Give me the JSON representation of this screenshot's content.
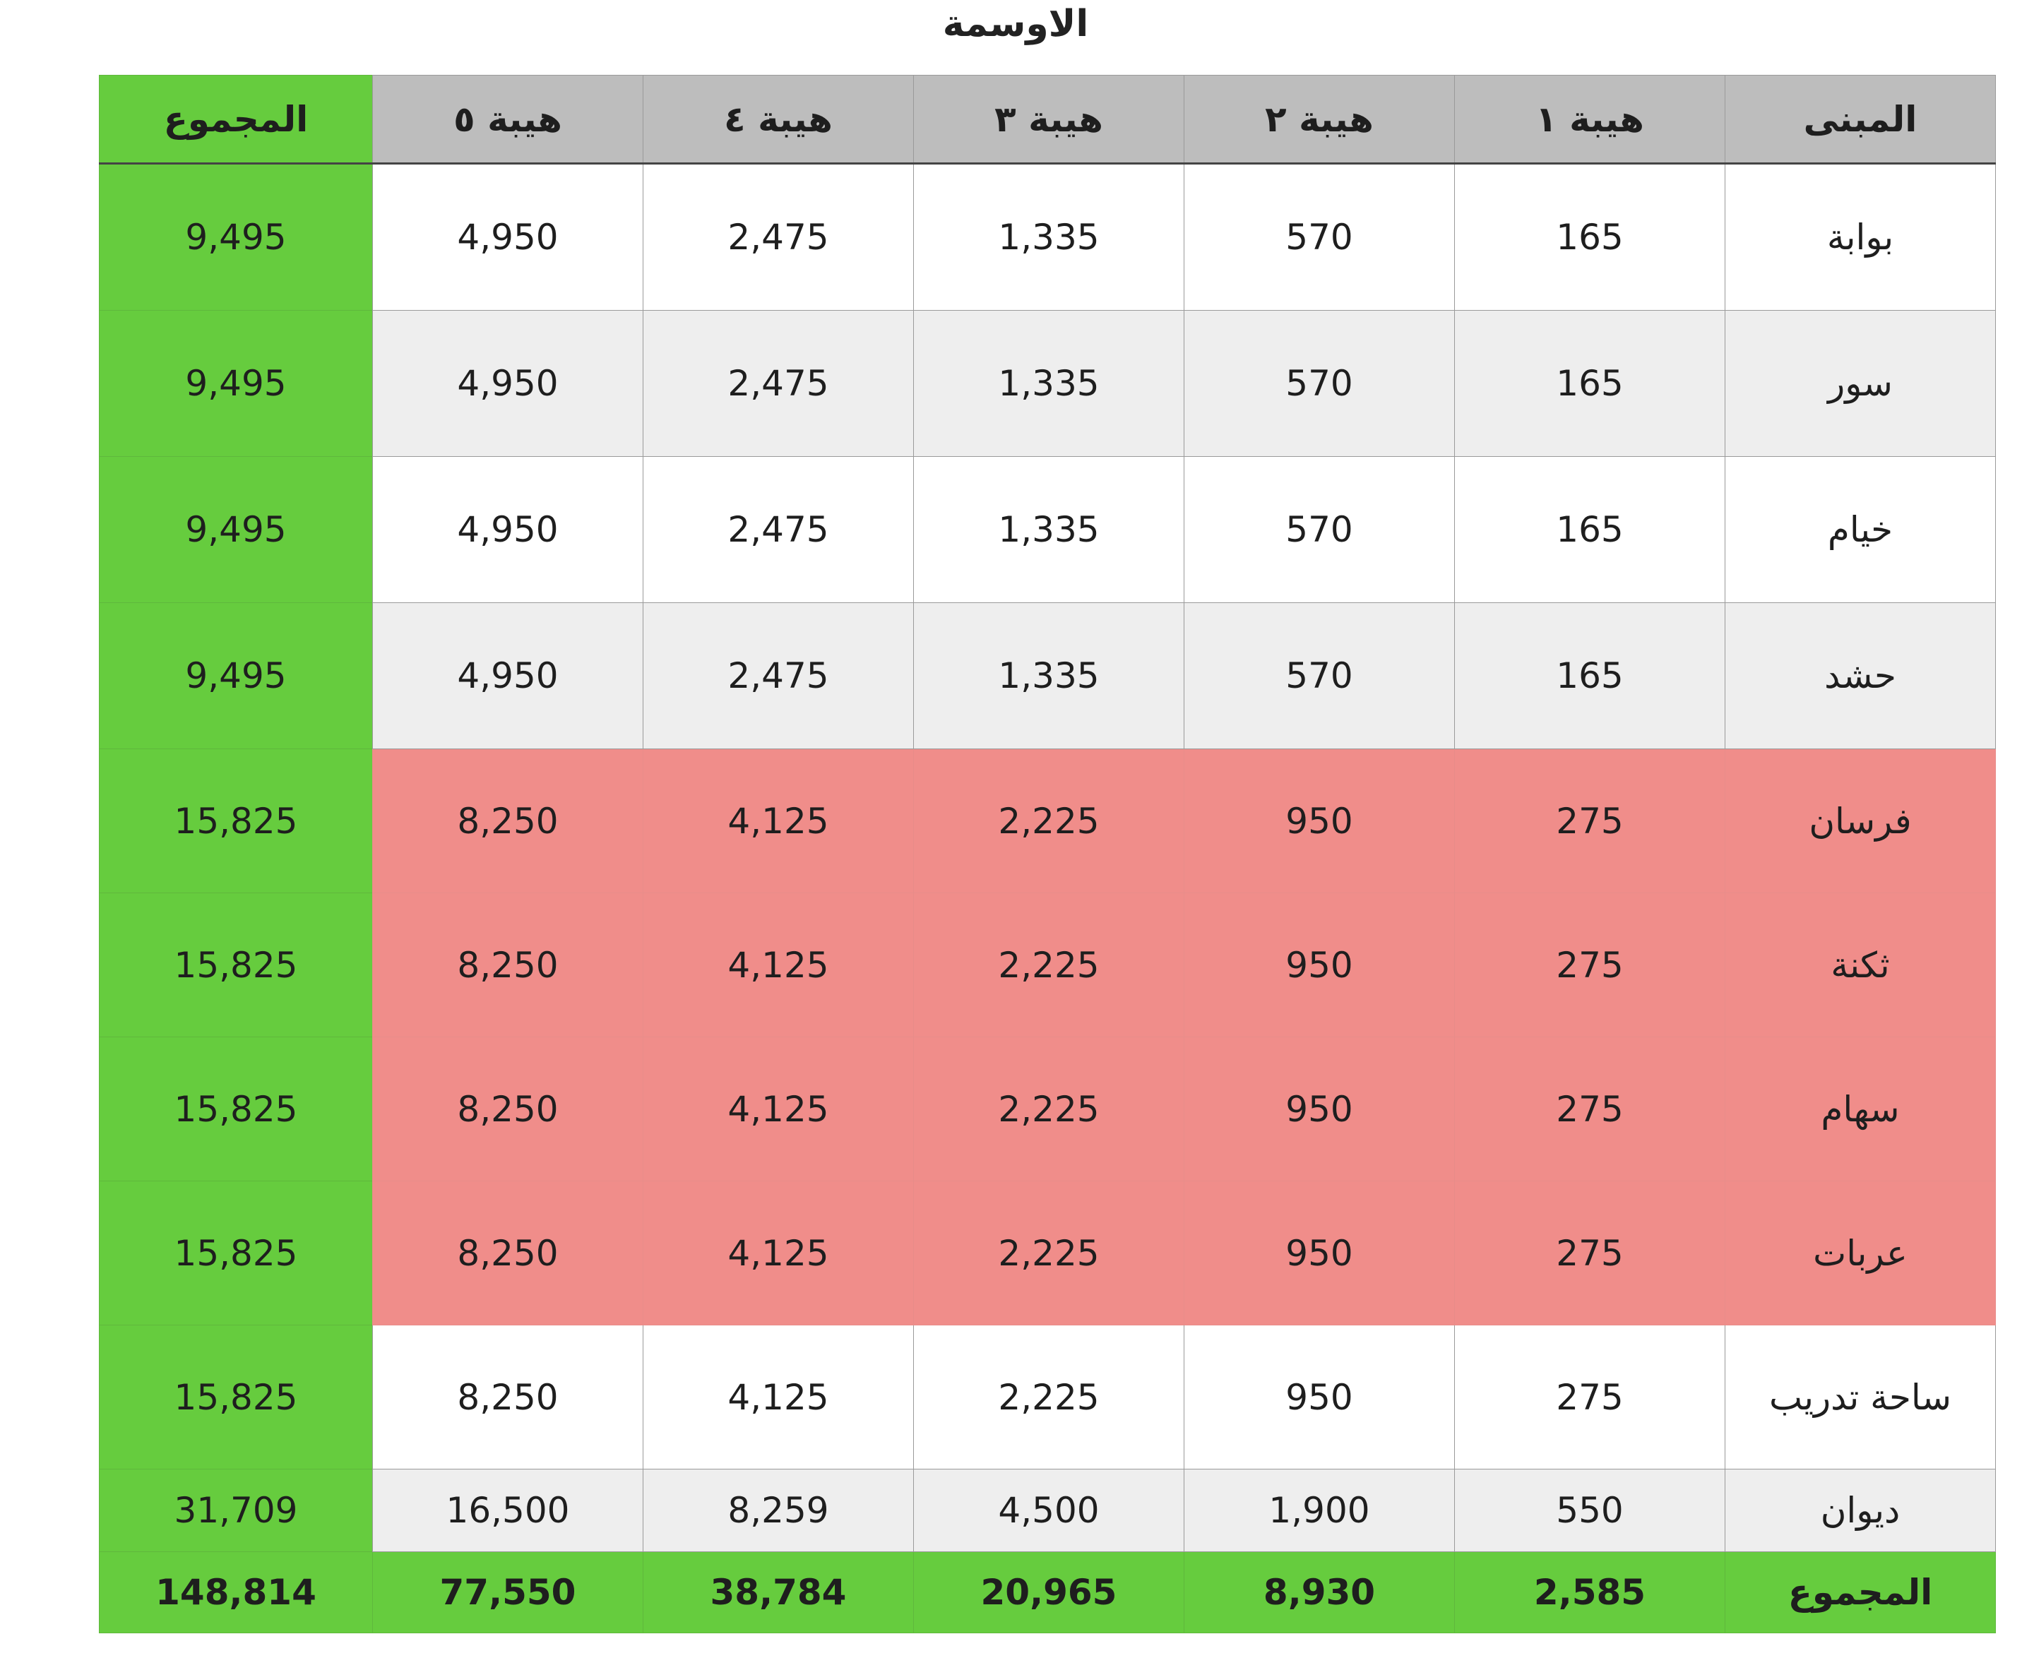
{
  "title": "الاوسمة",
  "headers": [
    "المبنى",
    "هيبة ١",
    "هيبة ٢",
    "هيبة ٣",
    "هيبة ٤",
    "هيبة ٥",
    "المجموع"
  ],
  "rows": [
    {
      "name": "بوابة",
      "h1": "165",
      "h2": "570",
      "h3": "1,335",
      "h4": "2,475",
      "h5": "4,950",
      "sum": "9,495"
    },
    {
      "name": "سور",
      "h1": "165",
      "h2": "570",
      "h3": "1,335",
      "h4": "2,475",
      "h5": "4,950",
      "sum": "9,495"
    },
    {
      "name": "خيام",
      "h1": "165",
      "h2": "570",
      "h3": "1,335",
      "h4": "2,475",
      "h5": "4,950",
      "sum": "9,495"
    },
    {
      "name": "حشد",
      "h1": "165",
      "h2": "570",
      "h3": "1,335",
      "h4": "2,475",
      "h5": "4,950",
      "sum": "9,495"
    },
    {
      "name": "فرسان",
      "h1": "275",
      "h2": "950",
      "h3": "2,225",
      "h4": "4,125",
      "h5": "8,250",
      "sum": "15,825"
    },
    {
      "name": "ثكنة",
      "h1": "275",
      "h2": "950",
      "h3": "2,225",
      "h4": "4,125",
      "h5": "8,250",
      "sum": "15,825"
    },
    {
      "name": "سهام",
      "h1": "275",
      "h2": "950",
      "h3": "2,225",
      "h4": "4,125",
      "h5": "8,250",
      "sum": "15,825"
    },
    {
      "name": "عربات",
      "h1": "275",
      "h2": "950",
      "h3": "2,225",
      "h4": "4,125",
      "h5": "8,250",
      "sum": "15,825"
    },
    {
      "name": "ساحة تدريب",
      "h1": "275",
      "h2": "950",
      "h3": "2,225",
      "h4": "4,125",
      "h5": "8,250",
      "sum": "15,825"
    },
    {
      "name": "ديوان",
      "h1": "550",
      "h2": "1,900",
      "h3": "4,500",
      "h4": "8,259",
      "h5": "16,500",
      "sum": "31,709"
    }
  ],
  "totals": {
    "name": "المجموع",
    "h1": "2,585",
    "h2": "8,930",
    "h3": "20,965",
    "h4": "38,784",
    "h5": "77,550",
    "sum": "148,814"
  },
  "colors": {
    "header_grey": "#bdbdbd",
    "sum_green": "#66cc3e",
    "highlight_red": "#f08d8a",
    "row_grey": "#eeeeee"
  }
}
